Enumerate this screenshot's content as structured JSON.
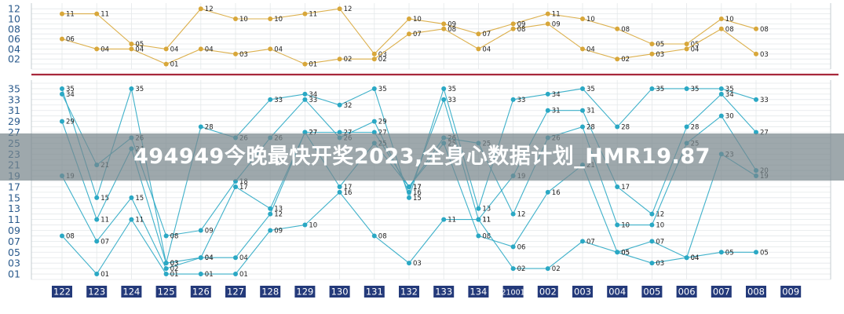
{
  "banner": {
    "title": "494949今晚最快开奖2023,全身心数据计划_HMR19.87"
  },
  "colors": {
    "gold": "#d8a73a",
    "teal": "#2aa8c4",
    "red": "#a8283c",
    "grid": "#e4e8ea",
    "axis_label_bg": "#243a7a"
  },
  "chart_data": [
    {
      "type": "line",
      "title": "",
      "yticks": [
        "02",
        "04",
        "06",
        "08",
        "10",
        "12"
      ],
      "ylim": [
        0,
        12.5
      ],
      "categories": [
        "122",
        "123",
        "124",
        "125",
        "126",
        "127",
        "128",
        "129",
        "130",
        "131",
        "132",
        "133",
        "134",
        "21001",
        "002",
        "003",
        "004",
        "005",
        "006",
        "007",
        "008",
        "009"
      ],
      "series": [
        {
          "values": [
            11,
            11,
            5,
            4,
            12,
            10,
            10,
            11,
            12,
            3,
            10,
            9,
            7,
            9,
            11,
            10,
            8,
            5,
            5,
            10,
            8,
            null
          ]
        },
        {
          "values": [
            6,
            4,
            4,
            1,
            4,
            3,
            4,
            1,
            2,
            2,
            7,
            8,
            4,
            8,
            9,
            4,
            2,
            3,
            4,
            8,
            3,
            null
          ]
        }
      ],
      "point_labels": [
        [
          "11",
          "11",
          "05",
          "04",
          "12",
          "10",
          "10",
          "11",
          "12",
          "03",
          "10",
          "09",
          "07",
          "09",
          "11",
          "10",
          "08",
          "05",
          "05",
          "10",
          "08",
          ""
        ],
        [
          "06",
          "04",
          "04",
          "01",
          "04",
          "03",
          "04",
          "01",
          "02",
          "02",
          "07",
          "08",
          "04",
          "08",
          "09",
          "04",
          "02",
          "03",
          "04",
          "08",
          "03",
          ""
        ]
      ]
    },
    {
      "type": "line",
      "title": "",
      "yticks": [
        "01",
        "03",
        "05",
        "07",
        "09",
        "11",
        "13",
        "15",
        "17",
        "19",
        "21",
        "23",
        "25",
        "27",
        "29",
        "31",
        "33",
        "35"
      ],
      "ylim": [
        0,
        36
      ],
      "categories": [
        "122",
        "123",
        "124",
        "125",
        "126",
        "127",
        "128",
        "129",
        "130",
        "131",
        "132",
        "133",
        "134",
        "21001",
        "002",
        "003",
        "004",
        "005",
        "006",
        "007",
        "008",
        "009"
      ],
      "series": [
        {
          "values": [
            35,
            15,
            35,
            3,
            28,
            26,
            33,
            34,
            32,
            35,
            15,
            35,
            13,
            33,
            34,
            35,
            28,
            35,
            35,
            35,
            33,
            null
          ]
        },
        {
          "values": [
            34,
            21,
            26,
            8,
            9,
            18,
            26,
            33,
            26,
            29,
            16,
            33,
            11,
            19,
            31,
            31,
            17,
            12,
            28,
            34,
            27,
            null
          ]
        },
        {
          "values": [
            29,
            11,
            24,
            3,
            4,
            17,
            13,
            27,
            27,
            27,
            17,
            26,
            25,
            12,
            26,
            28,
            10,
            10,
            25,
            30,
            20,
            null
          ]
        },
        {
          "values": [
            19,
            7,
            15,
            2,
            4,
            4,
            12,
            27,
            17,
            25,
            17,
            25,
            8,
            6,
            16,
            21,
            5,
            7,
            4,
            23,
            19,
            null
          ]
        },
        {
          "values": [
            8,
            1,
            11,
            1,
            1,
            1,
            9,
            10,
            16,
            8,
            3,
            11,
            11,
            2,
            2,
            7,
            5,
            3,
            4,
            5,
            5,
            null
          ]
        }
      ],
      "point_labels": [
        [
          "35",
          "15",
          "35",
          "03",
          "28",
          "26",
          "33",
          "34",
          "32",
          "35",
          "15",
          "35",
          "13",
          "33",
          "34",
          "35",
          "28",
          "35",
          "35",
          "35",
          "33",
          ""
        ],
        [
          "34",
          "21",
          "26",
          "08",
          "09",
          "18",
          "26",
          "33",
          "26",
          "29",
          "16",
          "33",
          "11",
          "19",
          "31",
          "31",
          "17",
          "12",
          "28",
          "34",
          "27",
          ""
        ],
        [
          "29",
          "11",
          "24",
          "03",
          "04",
          "17",
          "13",
          "27",
          "27",
          "27",
          "17",
          "26",
          "25",
          "12",
          "26",
          "28",
          "10",
          "10",
          "25",
          "30",
          "20",
          ""
        ],
        [
          "19",
          "07",
          "15",
          "02",
          "04",
          "04",
          "12",
          "27",
          "17",
          "25",
          "17",
          "25",
          "08",
          "06",
          "16",
          "21",
          "05",
          "07",
          "04",
          "23",
          "19",
          ""
        ],
        [
          "08",
          "01",
          "11",
          "01",
          "01",
          "01",
          "09",
          "10",
          "16",
          "08",
          "03",
          "11",
          "11",
          "02",
          "02",
          "07",
          "05",
          "03",
          "04",
          "05",
          "05",
          ""
        ]
      ]
    }
  ]
}
